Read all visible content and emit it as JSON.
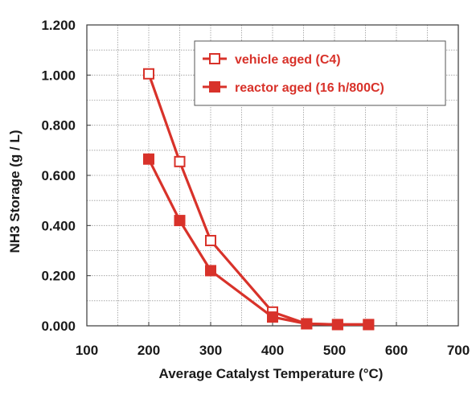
{
  "chart_data": {
    "type": "line",
    "xlabel": "Average Catalyst Temperature (°C)",
    "ylabel": "NH3 Storage (g / L)",
    "xlim": [
      100,
      700
    ],
    "ylim": [
      0,
      1.2
    ],
    "x_ticks": [
      "100",
      "200",
      "300",
      "400",
      "500",
      "600",
      "700"
    ],
    "y_ticks": [
      "0.000",
      "0.200",
      "0.400",
      "0.600",
      "0.800",
      "1.000",
      "1.200"
    ],
    "grid": true,
    "legend_position": "top-right",
    "series_color": "#d8322a",
    "series": [
      {
        "name": "vehicle aged (C4)",
        "marker": "open-square",
        "points": [
          [
            200,
            1.005
          ],
          [
            250,
            0.655
          ],
          [
            300,
            0.34
          ],
          [
            400,
            0.055
          ],
          [
            455,
            0.008
          ],
          [
            505,
            0.005
          ],
          [
            555,
            0.005
          ]
        ]
      },
      {
        "name": "reactor aged (16 h/800C)",
        "marker": "filled-square",
        "points": [
          [
            200,
            0.665
          ],
          [
            250,
            0.42
          ],
          [
            300,
            0.22
          ],
          [
            400,
            0.035
          ],
          [
            455,
            0.008
          ],
          [
            505,
            0.005
          ],
          [
            555,
            0.005
          ]
        ]
      }
    ]
  }
}
